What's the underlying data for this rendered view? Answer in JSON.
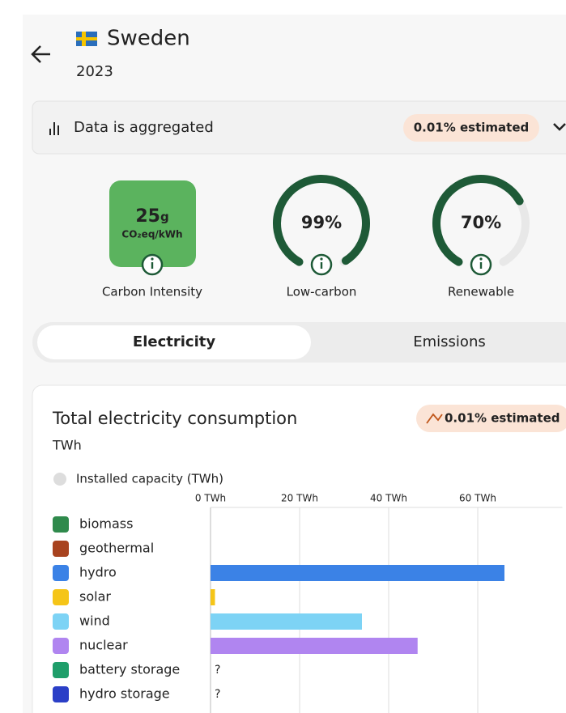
{
  "header": {
    "country": "Sweden",
    "year": "2023"
  },
  "aggregation": {
    "text": "Data is aggregated",
    "badge": "0.01% estimated"
  },
  "metrics": {
    "carbon_intensity": {
      "value": "25",
      "unit": "g",
      "subunit": "CO₂eq/kWh",
      "caption": "Carbon Intensity"
    },
    "low_carbon": {
      "value": 99,
      "label": "99%",
      "caption": "Low-carbon"
    },
    "renewable": {
      "value": 70,
      "label": "70%",
      "caption": "Renewable"
    }
  },
  "tabs": [
    "Electricity",
    "Emissions"
  ],
  "panel": {
    "title": "Total electricity consumption",
    "unit": "TWh",
    "badge": "0.01% estimated",
    "legend": "Installed capacity (TWh)"
  },
  "chart_data": {
    "type": "hbar",
    "categories": [
      "biomass",
      "geothermal",
      "hydro",
      "solar",
      "wind",
      "nuclear",
      "battery storage",
      "hydro storage"
    ],
    "values": [
      0,
      0,
      66,
      1,
      34,
      46.5,
      null,
      null
    ],
    "value_labels": [
      null,
      null,
      null,
      null,
      null,
      null,
      "?",
      "?"
    ],
    "colors": [
      "#2f8a4c",
      "#a8431f",
      "#3b82e6",
      "#f5c518",
      "#7dd3f5",
      "#b085f0",
      "#1f9e6a",
      "#2b3fc7"
    ],
    "xlim": [
      0,
      79
    ],
    "xticks": [
      {
        "value": 0,
        "label": "0 TWh"
      },
      {
        "value": 20,
        "label": "20 TWh"
      },
      {
        "value": 40,
        "label": "40 TWh"
      },
      {
        "value": 60,
        "label": "60 TWh"
      }
    ],
    "grid": true
  }
}
